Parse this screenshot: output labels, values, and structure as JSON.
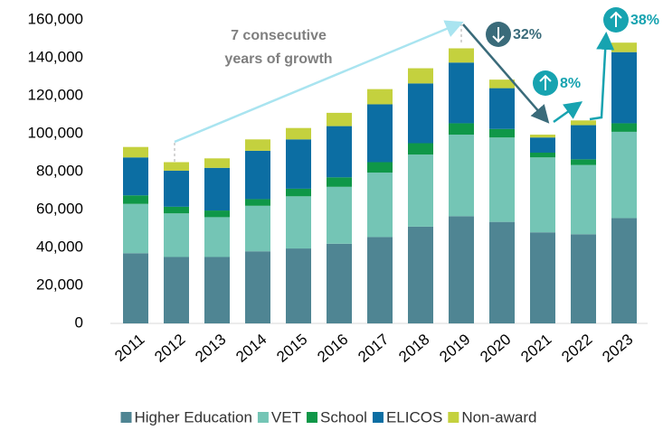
{
  "chart_data": {
    "type": "stacked_bar",
    "categories": [
      "2011",
      "2012",
      "2013",
      "2014",
      "2015",
      "2016",
      "2017",
      "2018",
      "2019",
      "2020",
      "2021",
      "2022",
      "2023"
    ],
    "series": [
      {
        "name": "Higher Education",
        "color": "#4f8593",
        "values": [
          37000,
          35000,
          35000,
          38000,
          39500,
          42000,
          45500,
          51000,
          56500,
          53500,
          48000,
          47000,
          55500
        ]
      },
      {
        "name": "VET",
        "color": "#74c5b5",
        "values": [
          26000,
          23000,
          21000,
          24000,
          27500,
          30000,
          34000,
          38000,
          43000,
          44500,
          39500,
          36500,
          45500
        ]
      },
      {
        "name": "School",
        "color": "#0f9748",
        "values": [
          4500,
          3500,
          3500,
          3500,
          4000,
          5000,
          5500,
          6000,
          6000,
          4500,
          2500,
          3000,
          4500
        ]
      },
      {
        "name": "ELICOS",
        "color": "#0c6ea3",
        "values": [
          20000,
          19000,
          22500,
          25500,
          26000,
          27000,
          30500,
          31500,
          32000,
          21500,
          8000,
          18000,
          37500
        ]
      },
      {
        "name": "Non-award",
        "color": "#c4d13e",
        "values": [
          5500,
          4500,
          5000,
          6000,
          6000,
          7000,
          8000,
          8000,
          7500,
          4500,
          1500,
          2500,
          5000
        ]
      }
    ],
    "ylim": [
      0,
      160000
    ],
    "yticks": [
      0,
      {
        "value": 20000,
        "label": "20,000"
      },
      {
        "value": 40000,
        "label": "40,000"
      },
      {
        "value": 60000,
        "label": "60,000"
      },
      {
        "value": 80000,
        "label": "80,000"
      },
      {
        "value": 100000,
        "label": "100,000"
      },
      {
        "value": 120000,
        "label": "120,000"
      },
      {
        "value": 140000,
        "label": "140,000"
      },
      {
        "value": 160000,
        "label": "160,000"
      }
    ],
    "growth_note": [
      "7 consecutive",
      "years of growth"
    ],
    "changes": [
      "32%",
      "8%",
      "38%"
    ]
  }
}
